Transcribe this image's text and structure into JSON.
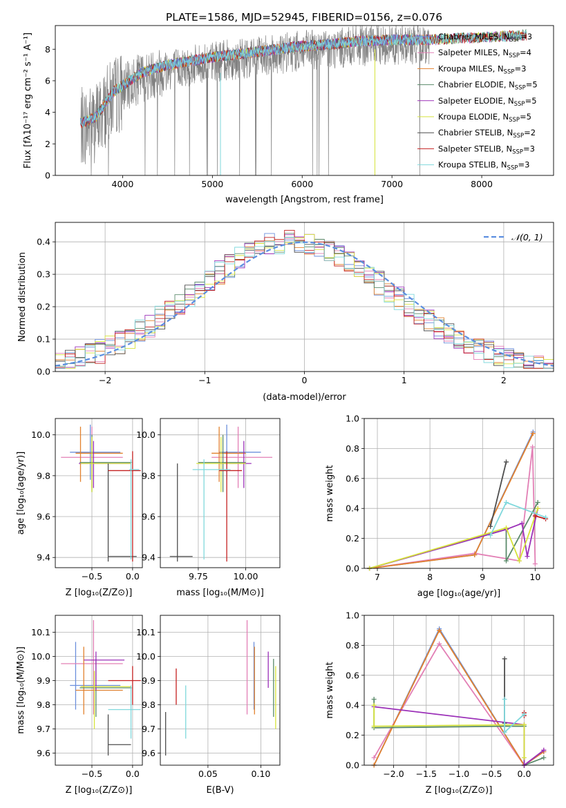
{
  "figure": {
    "title": "PLATE=1586, MJD=52945, FIBERID=0156, z=0.076"
  },
  "colors": {
    "Chabrier MILES": "#6b8fdc",
    "Salpeter MILES": "#e27fb5",
    "Kroupa MILES": "#e2812d",
    "Chabrier ELODIE": "#5a8a6a",
    "Salpeter ELODIE": "#9b30b8",
    "Kroupa ELODIE": "#d6e33a",
    "Chabrier STELIB": "#4d4d4d",
    "Salpeter STELIB": "#c42020",
    "Kroupa STELIB": "#7fd8dc",
    "data": "#808080",
    "normal_curve": "#5b8ee0"
  },
  "chart_data": [
    {
      "type": "line",
      "panel": "spectrum",
      "title": "PLATE=1586, MJD=52945, FIBERID=0156, z=0.076",
      "xlabel": "wavelength [Angstrom, rest frame]",
      "ylabel": "Flux [fλ10⁻¹⁷ erg cm⁻² s⁻¹ A⁻¹]",
      "xlim": [
        3250,
        8800
      ],
      "ylim": [
        0,
        9.5
      ],
      "xticks": [
        4000,
        5000,
        6000,
        7000,
        8000
      ],
      "yticks": [
        0,
        2,
        4,
        6,
        8
      ],
      "grid": false,
      "legend_position": "top-right",
      "legend": [
        {
          "name": "Chabrier MILES",
          "ssp": "=3"
        },
        {
          "name": "Salpeter MILES",
          "ssp": "=4"
        },
        {
          "name": "Kroupa MILES",
          "ssp": "=3"
        },
        {
          "name": "Chabrier ELODIE",
          "ssp": "=5"
        },
        {
          "name": "Salpeter ELODIE",
          "ssp": "=5"
        },
        {
          "name": "Kroupa ELODIE",
          "ssp": "=5"
        },
        {
          "name": "Chabrier STELIB",
          "ssp": "=2"
        },
        {
          "name": "Salpeter STELIB",
          "ssp": "=3"
        },
        {
          "name": "Kroupa STELIB",
          "ssp": "=3"
        }
      ],
      "continuum": {
        "x": [
          3530,
          3700,
          3800,
          3900,
          4000,
          4200,
          4500,
          4800,
          5000,
          5300,
          5600,
          6000,
          6300,
          6600,
          7000,
          7400,
          7800,
          8200,
          8500
        ],
        "y": [
          3.0,
          3.4,
          4.2,
          5.0,
          5.4,
          6.2,
          6.7,
          7.0,
          7.2,
          7.4,
          7.6,
          7.9,
          8.0,
          8.2,
          8.3,
          8.3,
          8.4,
          8.5,
          8.6
        ]
      },
      "data_x_range": [
        3530,
        7420
      ],
      "model_x_range": [
        3530,
        8500
      ]
    },
    {
      "type": "histogram",
      "panel": "residuals",
      "xlabel": "(data-model)/error",
      "ylabel": "Normed distribution",
      "xlim": [
        -2.5,
        2.5
      ],
      "ylim": [
        0,
        0.46
      ],
      "xticks": [
        -2,
        -1,
        0,
        1,
        2
      ],
      "yticks": [
        0.0,
        0.1,
        0.2,
        0.3,
        0.4
      ],
      "grid": true,
      "legend_position": "top-right",
      "legend": "𝒩(0, 1)",
      "bin_width": 0.1,
      "bin_start": -2.5,
      "reference_curve": "normal(0,1)"
    },
    {
      "type": "scatter",
      "panel": "age_vs_Z",
      "xlabel": "Z [log₁₀(Z/Z⊙)]",
      "ylabel": "age  [log₁₀(age/yr)]",
      "xlim": [
        -0.95,
        0.12
      ],
      "ylim": [
        9.35,
        10.08
      ],
      "xticks": [
        -0.5,
        0.0
      ],
      "xticklabels": [
        "−0.5",
        "0.0"
      ],
      "yticks": [
        9.4,
        9.6,
        9.8,
        10.0
      ],
      "grid": true,
      "points": [
        {
          "model": "Chabrier MILES",
          "x": -0.52,
          "y": 9.915,
          "xlo": -0.77,
          "xhi": -0.15,
          "ylo": 9.78,
          "yhi": 10.05
        },
        {
          "model": "Salpeter MILES",
          "x": -0.5,
          "y": 9.89,
          "xlo": -0.88,
          "xhi": -0.12,
          "ylo": 9.74,
          "yhi": 10.04
        },
        {
          "model": "Kroupa MILES",
          "x": -0.64,
          "y": 9.91,
          "xlo": -0.7,
          "xhi": -0.12,
          "ylo": 9.77,
          "yhi": 10.04
        },
        {
          "model": "Chabrier ELODIE",
          "x": -0.5,
          "y": 9.865,
          "xlo": -0.65,
          "xhi": -0.01,
          "ylo": 9.72,
          "yhi": 10.0
        },
        {
          "model": "Salpeter ELODIE",
          "x": -0.48,
          "y": 9.86,
          "xlo": -0.66,
          "xhi": -0.02,
          "ylo": 9.74,
          "yhi": 9.97
        },
        {
          "model": "Kroupa ELODIE",
          "x": -0.5,
          "y": 9.86,
          "xlo": -0.64,
          "xhi": -0.02,
          "ylo": 9.72,
          "yhi": 9.99
        },
        {
          "model": "Chabrier STELIB",
          "x": -0.3,
          "y": 9.405,
          "xlo": -0.3,
          "xhi": 0.05,
          "ylo": 9.38,
          "yhi": 9.86
        },
        {
          "model": "Salpeter STELIB",
          "x": 0.0,
          "y": 9.825,
          "xlo": -0.3,
          "xhi": 0.1,
          "ylo": 9.38,
          "yhi": 9.92
        },
        {
          "model": "Kroupa STELIB",
          "x": -0.02,
          "y": 9.83,
          "xlo": -0.04,
          "xhi": 0.08,
          "ylo": 9.39,
          "yhi": 9.88
        }
      ]
    },
    {
      "type": "scatter",
      "panel": "age_vs_mass",
      "xlabel": "mass [log₁₀(M/M⊙)]",
      "ylabel": "",
      "xlim": [
        9.55,
        10.18
      ],
      "ylim": [
        9.35,
        10.08
      ],
      "xticks": [
        9.75,
        10.0
      ],
      "xticklabels": [
        "9.75",
        "10.00"
      ],
      "yticks": [
        9.4,
        9.6,
        9.8,
        10.0
      ],
      "grid": true,
      "points": [
        {
          "model": "Chabrier MILES",
          "x": 9.9,
          "y": 9.915,
          "xlo": 9.86,
          "xhi": 10.08,
          "ylo": 9.78,
          "yhi": 10.05
        },
        {
          "model": "Salpeter MILES",
          "x": 9.96,
          "y": 9.89,
          "xlo": 9.82,
          "xhi": 10.14,
          "ylo": 9.74,
          "yhi": 10.04
        },
        {
          "model": "Kroupa MILES",
          "x": 9.86,
          "y": 9.91,
          "xlo": 9.82,
          "xhi": 10.0,
          "ylo": 9.77,
          "yhi": 10.04
        },
        {
          "model": "Chabrier ELODIE",
          "x": 9.88,
          "y": 9.865,
          "xlo": 9.75,
          "xhi": 10.0,
          "ylo": 9.72,
          "yhi": 10.0
        },
        {
          "model": "Salpeter ELODIE",
          "x": 9.99,
          "y": 9.86,
          "xlo": 9.86,
          "xhi": 10.03,
          "ylo": 9.74,
          "yhi": 9.97
        },
        {
          "model": "Kroupa ELODIE",
          "x": 9.87,
          "y": 9.86,
          "xlo": 9.74,
          "xhi": 10.0,
          "ylo": 9.72,
          "yhi": 9.99
        },
        {
          "model": "Chabrier STELIB",
          "x": 9.64,
          "y": 9.405,
          "xlo": 9.6,
          "xhi": 9.72,
          "ylo": 9.38,
          "yhi": 9.86
        },
        {
          "model": "Salpeter STELIB",
          "x": 9.9,
          "y": 9.825,
          "xlo": 9.86,
          "xhi": 9.98,
          "ylo": 9.38,
          "yhi": 9.92
        },
        {
          "model": "Kroupa STELIB",
          "x": 9.78,
          "y": 9.83,
          "xlo": 9.72,
          "xhi": 9.92,
          "ylo": 9.39,
          "yhi": 9.88
        }
      ]
    },
    {
      "type": "line",
      "panel": "mass_weight_vs_age",
      "xlabel": "age  [log₁₀(age/yr)]",
      "ylabel": "mass weight",
      "xlim": [
        6.75,
        10.35
      ],
      "ylim": [
        0,
        1.0
      ],
      "xticks": [
        7,
        8,
        9,
        10
      ],
      "yticks": [
        0.0,
        0.2,
        0.4,
        0.6,
        0.8,
        1.0
      ],
      "grid": true,
      "series": [
        {
          "name": "Chabrier MILES",
          "x": [
            6.85,
            8.85,
            9.96
          ],
          "y": [
            0.0,
            0.09,
            0.91
          ]
        },
        {
          "name": "Salpeter MILES",
          "x": [
            6.85,
            8.85,
            9.7,
            9.95,
            10.0
          ],
          "y": [
            0.0,
            0.1,
            0.05,
            0.81,
            0.03
          ]
        },
        {
          "name": "Kroupa MILES",
          "x": [
            6.85,
            8.85,
            9.96
          ],
          "y": [
            0.0,
            0.09,
            0.9
          ]
        },
        {
          "name": "Chabrier ELODIE",
          "x": [
            6.85,
            9.45,
            9.45,
            10.05
          ],
          "y": [
            0.0,
            0.26,
            0.05,
            0.44
          ]
        },
        {
          "name": "Salpeter ELODIE",
          "x": [
            6.85,
            9.45,
            9.75,
            9.85,
            10.05
          ],
          "y": [
            0.0,
            0.26,
            0.3,
            0.08,
            0.4
          ]
        },
        {
          "name": "Kroupa ELODIE",
          "x": [
            6.85,
            9.45,
            9.7,
            10.05
          ],
          "y": [
            0.0,
            0.27,
            0.05,
            0.4
          ]
        },
        {
          "name": "Chabrier STELIB",
          "x": [
            9.15,
            9.45
          ],
          "y": [
            0.28,
            0.71
          ]
        },
        {
          "name": "Salpeter STELIB",
          "x": [
            10.0,
            10.2
          ],
          "y": [
            0.35,
            0.33
          ]
        },
        {
          "name": "Kroupa STELIB",
          "x": [
            9.15,
            9.45,
            10.2
          ],
          "y": [
            0.22,
            0.44,
            0.34
          ]
        }
      ]
    },
    {
      "type": "scatter",
      "panel": "mass_vs_Z",
      "xlabel": "Z [log₁₀(Z/Z⊙)]",
      "ylabel": "mass [log₁₀(M/M⊙)]",
      "xlim": [
        -0.95,
        0.12
      ],
      "ylim": [
        9.55,
        10.17
      ],
      "xticks": [
        -0.5,
        0.0
      ],
      "xticklabels": [
        "−0.5",
        "0.0"
      ],
      "yticks": [
        9.6,
        9.7,
        9.8,
        9.9,
        10.0,
        10.1
      ],
      "grid": true,
      "points": [
        {
          "model": "Chabrier MILES",
          "x": -0.7,
          "y": 9.88,
          "xlo": -0.77,
          "xhi": -0.15,
          "ylo": 9.78,
          "yhi": 10.06
        },
        {
          "model": "Salpeter MILES",
          "x": -0.48,
          "y": 9.97,
          "xlo": -0.88,
          "xhi": -0.12,
          "ylo": 9.76,
          "yhi": 10.15
        },
        {
          "model": "Kroupa MILES",
          "x": -0.6,
          "y": 9.86,
          "xlo": -0.7,
          "xhi": -0.12,
          "ylo": 9.76,
          "yhi": 10.04
        },
        {
          "model": "Chabrier ELODIE",
          "x": -0.45,
          "y": 9.87,
          "xlo": -0.65,
          "xhi": -0.01,
          "ylo": 9.75,
          "yhi": 9.99
        },
        {
          "model": "Salpeter ELODIE",
          "x": -0.45,
          "y": 9.985,
          "xlo": -0.6,
          "xhi": -0.1,
          "ylo": 9.86,
          "yhi": 10.02
        },
        {
          "model": "Kroupa ELODIE",
          "x": -0.47,
          "y": 9.875,
          "xlo": -0.64,
          "xhi": -0.02,
          "ylo": 9.7,
          "yhi": 9.94
        },
        {
          "model": "Chabrier STELIB",
          "x": -0.3,
          "y": 9.635,
          "xlo": -0.3,
          "xhi": -0.02,
          "ylo": 9.59,
          "yhi": 9.76
        },
        {
          "model": "Salpeter STELIB",
          "x": 0.0,
          "y": 9.9,
          "xlo": -0.3,
          "xhi": 0.1,
          "ylo": 9.8,
          "yhi": 9.96
        },
        {
          "model": "Kroupa STELIB",
          "x": -0.02,
          "y": 9.78,
          "xlo": -0.3,
          "xhi": 0.1,
          "ylo": 9.66,
          "yhi": 9.88
        }
      ]
    },
    {
      "type": "scatter",
      "panel": "mass_vs_EBV",
      "xlabel": "E(B-V)",
      "ylabel": "",
      "xlim": [
        0.005,
        0.118
      ],
      "ylim": [
        9.55,
        10.17
      ],
      "xticks": [
        0.05,
        0.1
      ],
      "xticklabels": [
        "0.05",
        "0.10"
      ],
      "yticks": [
        9.6,
        9.7,
        9.8,
        9.9,
        10.0,
        10.1
      ],
      "grid": true,
      "points": [
        {
          "model": "Chabrier MILES",
          "x": 0.0935,
          "y": 9.88,
          "ylo": 9.78,
          "yhi": 10.06
        },
        {
          "model": "Salpeter MILES",
          "x": 0.087,
          "y": 9.97,
          "ylo": 9.76,
          "yhi": 10.15
        },
        {
          "model": "Kroupa MILES",
          "x": 0.094,
          "y": 9.86,
          "ylo": 9.76,
          "yhi": 10.04
        },
        {
          "model": "Chabrier ELODIE",
          "x": 0.112,
          "y": 9.87,
          "ylo": 9.75,
          "yhi": 9.99
        },
        {
          "model": "Salpeter ELODIE",
          "x": 0.107,
          "y": 9.94,
          "ylo": 9.87,
          "yhi": 10.02
        },
        {
          "model": "Kroupa ELODIE",
          "x": 0.114,
          "y": 9.87,
          "ylo": 9.7,
          "yhi": 9.96
        },
        {
          "model": "Chabrier STELIB",
          "x": 0.01,
          "y": 9.68,
          "ylo": 9.59,
          "yhi": 9.77
        },
        {
          "model": "Salpeter STELIB",
          "x": 0.02,
          "y": 9.87,
          "ylo": 9.8,
          "yhi": 9.95
        },
        {
          "model": "Kroupa STELIB",
          "x": 0.029,
          "y": 9.78,
          "ylo": 9.66,
          "yhi": 9.88
        }
      ]
    },
    {
      "type": "line",
      "panel": "mass_weight_vs_Z",
      "xlabel": "Z [log₁₀(Z/Z⊙)]",
      "ylabel": "mass weight",
      "xlim": [
        -2.45,
        0.45
      ],
      "ylim": [
        0,
        1.0
      ],
      "xticks": [
        -2.0,
        -1.5,
        -1.0,
        -0.5,
        0.0
      ],
      "xticklabels": [
        "−2.0",
        "−1.5",
        "−1.0",
        "−0.5",
        "0.0"
      ],
      "yticks": [
        0.0,
        0.2,
        0.4,
        0.6,
        0.8,
        1.0
      ],
      "grid": true,
      "series": [
        {
          "name": "Chabrier MILES",
          "x": [
            -2.3,
            -1.3,
            0.0,
            0.3
          ],
          "y": [
            0.0,
            0.91,
            0.0,
            0.09
          ]
        },
        {
          "name": "Salpeter MILES",
          "x": [
            -2.3,
            -1.3,
            0.0,
            0.3
          ],
          "y": [
            0.05,
            0.81,
            0.0,
            0.1
          ]
        },
        {
          "name": "Kroupa MILES",
          "x": [
            -2.3,
            -1.3,
            0.0,
            0.3
          ],
          "y": [
            0.0,
            0.9,
            0.0,
            0.09
          ]
        },
        {
          "name": "Chabrier ELODIE",
          "x": [
            -2.3,
            -2.3,
            -0.3,
            0.0,
            0.0,
            0.3
          ],
          "y": [
            0.44,
            0.25,
            0.26,
            0.26,
            0.0,
            0.05
          ]
        },
        {
          "name": "Salpeter ELODIE",
          "x": [
            -2.3,
            0.0,
            0.0,
            0.3
          ],
          "y": [
            0.39,
            0.27,
            0.0,
            0.1
          ]
        },
        {
          "name": "Kroupa ELODIE",
          "x": [
            -2.3,
            -2.3,
            0.0,
            0.0
          ],
          "y": [
            0.4,
            0.26,
            0.27,
            0.05
          ]
        },
        {
          "name": "Chabrier STELIB",
          "x": [
            -0.3,
            -0.3
          ],
          "y": [
            0.71,
            0.28
          ]
        },
        {
          "name": "Salpeter STELIB",
          "x": [
            0.0,
            0.0
          ],
          "y": [
            0.35,
            0.33
          ]
        },
        {
          "name": "Kroupa STELIB",
          "x": [
            -0.3,
            -0.3,
            0.0
          ],
          "y": [
            0.44,
            0.22,
            0.34
          ]
        }
      ]
    }
  ]
}
